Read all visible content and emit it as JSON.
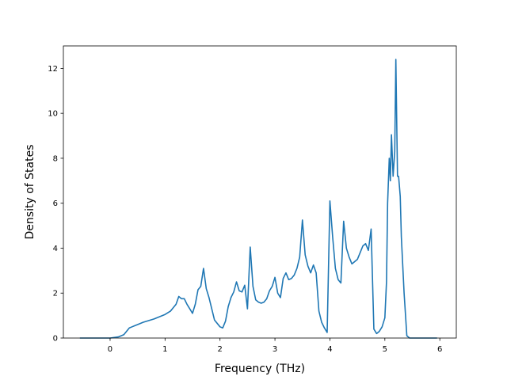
{
  "chart_data": {
    "type": "line",
    "title": "",
    "xlabel": "Frequency (THz)",
    "ylabel": "Density of States",
    "xlim": [
      -0.85,
      6.3
    ],
    "ylim": [
      0,
      13
    ],
    "xticks": [
      0,
      1,
      2,
      3,
      4,
      5,
      6
    ],
    "yticks": [
      0,
      2,
      4,
      6,
      8,
      10,
      12
    ],
    "xtick_labels": [
      "0",
      "1",
      "2",
      "3",
      "4",
      "5",
      "6"
    ],
    "ytick_labels": [
      "0",
      "2",
      "4",
      "6",
      "8",
      "10",
      "12"
    ],
    "grid": false,
    "legend": "none",
    "line_color": "#1f77b4",
    "series": [
      {
        "x": [
          -0.55,
          0.0,
          0.15,
          0.25,
          0.3,
          0.35,
          0.4,
          0.45,
          0.5,
          0.6,
          0.8,
          1.0,
          1.1,
          1.15,
          1.2,
          1.25,
          1.3,
          1.35,
          1.4,
          1.45,
          1.5,
          1.55,
          1.6,
          1.65,
          1.7,
          1.75,
          1.8,
          1.85,
          1.9,
          2.0,
          2.05,
          2.1,
          2.15,
          2.2,
          2.25,
          2.3,
          2.35,
          2.4,
          2.45,
          2.5,
          2.55,
          2.6,
          2.65,
          2.7,
          2.75,
          2.8,
          2.85,
          2.9,
          2.95,
          3.0,
          3.05,
          3.1,
          3.15,
          3.2,
          3.25,
          3.3,
          3.35,
          3.4,
          3.45,
          3.5,
          3.55,
          3.6,
          3.65,
          3.7,
          3.75,
          3.8,
          3.85,
          3.9,
          3.95,
          4.0,
          4.05,
          4.1,
          4.15,
          4.2,
          4.25,
          4.3,
          4.35,
          4.4,
          4.45,
          4.5,
          4.55,
          4.6,
          4.65,
          4.7,
          4.75,
          4.8,
          4.85,
          4.9,
          4.95,
          5.0,
          5.03,
          5.05,
          5.08,
          5.1,
          5.12,
          5.15,
          5.18,
          5.2,
          5.23,
          5.25,
          5.28,
          5.3,
          5.35,
          5.4,
          5.45,
          5.5,
          5.95
        ],
        "y": [
          0.0,
          0.0,
          0.05,
          0.15,
          0.3,
          0.45,
          0.5,
          0.55,
          0.6,
          0.7,
          0.85,
          1.05,
          1.2,
          1.35,
          1.5,
          1.85,
          1.75,
          1.75,
          1.5,
          1.3,
          1.1,
          1.5,
          2.15,
          2.3,
          3.1,
          2.2,
          1.8,
          1.3,
          0.8,
          0.5,
          0.45,
          0.75,
          1.4,
          1.8,
          2.05,
          2.5,
          2.1,
          2.05,
          2.35,
          1.3,
          4.05,
          2.3,
          1.7,
          1.6,
          1.55,
          1.6,
          1.75,
          2.1,
          2.3,
          2.7,
          2.0,
          1.8,
          2.65,
          2.9,
          2.6,
          2.65,
          2.8,
          3.1,
          3.6,
          5.25,
          3.7,
          3.2,
          2.9,
          3.25,
          2.9,
          1.2,
          0.7,
          0.45,
          0.25,
          6.1,
          4.5,
          3.1,
          2.6,
          2.45,
          5.2,
          4.0,
          3.6,
          3.3,
          3.4,
          3.5,
          3.8,
          4.1,
          4.2,
          3.9,
          4.85,
          0.4,
          0.2,
          0.3,
          0.5,
          0.9,
          2.5,
          6.0,
          8.0,
          7.0,
          9.05,
          7.2,
          8.3,
          12.4,
          7.2,
          7.2,
          6.3,
          4.5,
          2.0,
          0.1,
          0.0,
          0.0,
          0.0
        ]
      }
    ]
  }
}
